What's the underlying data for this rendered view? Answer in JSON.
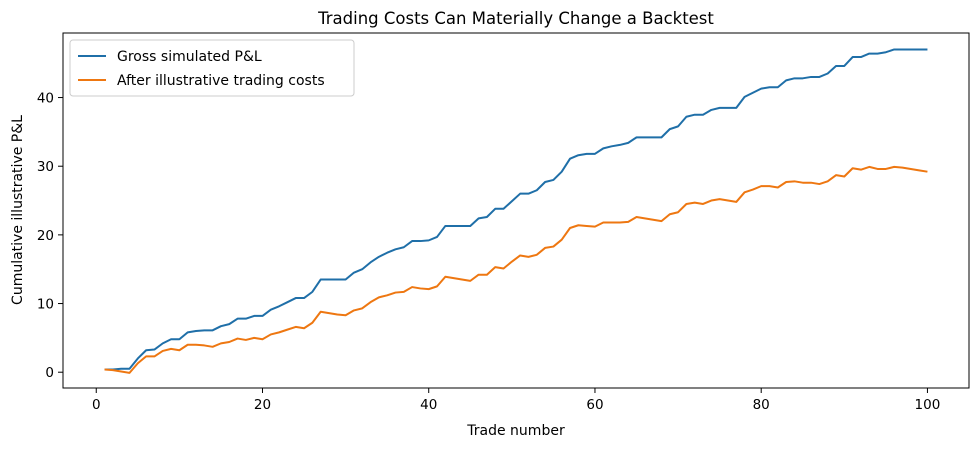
{
  "chart_data": {
    "type": "line",
    "title": "Trading Costs Can Materially Change a Backtest",
    "xlabel": "Trade number",
    "ylabel": "Cumulative illustrative P&L",
    "xlim": [
      -4.0,
      105.0
    ],
    "ylim": [
      -2.3,
      49.4
    ],
    "xticks": [
      0,
      20,
      40,
      60,
      80,
      100
    ],
    "yticks": [
      0,
      10,
      20,
      30,
      40
    ],
    "grid": false,
    "legend_position": "top-left",
    "series": [
      {
        "name": "Gross simulated P&L",
        "color": "#1f6fa8",
        "points": [
          [
            1,
            0.4
          ],
          [
            2,
            0.4
          ],
          [
            3,
            0.5
          ],
          [
            4,
            0.5
          ],
          [
            5,
            2.0
          ],
          [
            6,
            3.2
          ],
          [
            7,
            3.3
          ],
          [
            8,
            4.2
          ],
          [
            9,
            4.8
          ],
          [
            10,
            4.8
          ],
          [
            11,
            5.8
          ],
          [
            12,
            6.0
          ],
          [
            13,
            6.1
          ],
          [
            14,
            6.1
          ],
          [
            15,
            6.7
          ],
          [
            16,
            7.0
          ],
          [
            17,
            7.8
          ],
          [
            18,
            7.8
          ],
          [
            19,
            8.2
          ],
          [
            20,
            8.2
          ],
          [
            21,
            9.1
          ],
          [
            22,
            9.6
          ],
          [
            23,
            10.2
          ],
          [
            24,
            10.8
          ],
          [
            25,
            10.8
          ],
          [
            26,
            11.7
          ],
          [
            27,
            13.5
          ],
          [
            28,
            13.5
          ],
          [
            29,
            13.5
          ],
          [
            30,
            13.5
          ],
          [
            31,
            14.5
          ],
          [
            32,
            15.0
          ],
          [
            33,
            16.0
          ],
          [
            34,
            16.8
          ],
          [
            35,
            17.4
          ],
          [
            36,
            17.9
          ],
          [
            37,
            18.2
          ],
          [
            38,
            19.1
          ],
          [
            39,
            19.1
          ],
          [
            40,
            19.2
          ],
          [
            41,
            19.7
          ],
          [
            42,
            21.3
          ],
          [
            43,
            21.3
          ],
          [
            44,
            21.3
          ],
          [
            45,
            21.3
          ],
          [
            46,
            22.4
          ],
          [
            47,
            22.6
          ],
          [
            48,
            23.8
          ],
          [
            49,
            23.8
          ],
          [
            50,
            24.9
          ],
          [
            51,
            26.0
          ],
          [
            52,
            26.0
          ],
          [
            53,
            26.5
          ],
          [
            54,
            27.7
          ],
          [
            55,
            28.0
          ],
          [
            56,
            29.2
          ],
          [
            57,
            31.1
          ],
          [
            58,
            31.6
          ],
          [
            59,
            31.8
          ],
          [
            60,
            31.8
          ],
          [
            61,
            32.6
          ],
          [
            62,
            32.9
          ],
          [
            63,
            33.1
          ],
          [
            64,
            33.4
          ],
          [
            65,
            34.2
          ],
          [
            66,
            34.2
          ],
          [
            67,
            34.2
          ],
          [
            68,
            34.2
          ],
          [
            69,
            35.4
          ],
          [
            70,
            35.8
          ],
          [
            71,
            37.2
          ],
          [
            72,
            37.5
          ],
          [
            73,
            37.5
          ],
          [
            74,
            38.2
          ],
          [
            75,
            38.5
          ],
          [
            76,
            38.5
          ],
          [
            77,
            38.5
          ],
          [
            78,
            40.1
          ],
          [
            79,
            40.7
          ],
          [
            80,
            41.3
          ],
          [
            81,
            41.5
          ],
          [
            82,
            41.5
          ],
          [
            83,
            42.5
          ],
          [
            84,
            42.8
          ],
          [
            85,
            42.8
          ],
          [
            86,
            43.0
          ],
          [
            87,
            43.0
          ],
          [
            88,
            43.5
          ],
          [
            89,
            44.6
          ],
          [
            90,
            44.6
          ],
          [
            91,
            45.9
          ],
          [
            92,
            45.9
          ],
          [
            93,
            46.4
          ],
          [
            94,
            46.4
          ],
          [
            95,
            46.6
          ],
          [
            96,
            47.0
          ],
          [
            97,
            47.0
          ],
          [
            98,
            47.0
          ],
          [
            99,
            47.0
          ],
          [
            100,
            47.0
          ]
        ]
      },
      {
        "name": "After illustrative trading costs",
        "color": "#ee7711",
        "points": [
          [
            1,
            0.4
          ],
          [
            2,
            0.3
          ],
          [
            3,
            0.1
          ],
          [
            4,
            -0.1
          ],
          [
            5,
            1.3
          ],
          [
            6,
            2.3
          ],
          [
            7,
            2.3
          ],
          [
            8,
            3.1
          ],
          [
            9,
            3.4
          ],
          [
            10,
            3.2
          ],
          [
            11,
            4.0
          ],
          [
            12,
            4.0
          ],
          [
            13,
            3.9
          ],
          [
            14,
            3.7
          ],
          [
            15,
            4.2
          ],
          [
            16,
            4.4
          ],
          [
            17,
            4.9
          ],
          [
            18,
            4.7
          ],
          [
            19,
            5.0
          ],
          [
            20,
            4.8
          ],
          [
            21,
            5.5
          ],
          [
            22,
            5.8
          ],
          [
            23,
            6.2
          ],
          [
            24,
            6.6
          ],
          [
            25,
            6.4
          ],
          [
            26,
            7.2
          ],
          [
            27,
            8.8
          ],
          [
            28,
            8.6
          ],
          [
            29,
            8.4
          ],
          [
            30,
            8.3
          ],
          [
            31,
            9.0
          ],
          [
            32,
            9.3
          ],
          [
            33,
            10.2
          ],
          [
            34,
            10.9
          ],
          [
            35,
            11.2
          ],
          [
            36,
            11.6
          ],
          [
            37,
            11.7
          ],
          [
            38,
            12.4
          ],
          [
            39,
            12.2
          ],
          [
            40,
            12.1
          ],
          [
            41,
            12.5
          ],
          [
            42,
            13.9
          ],
          [
            43,
            13.7
          ],
          [
            44,
            13.5
          ],
          [
            45,
            13.3
          ],
          [
            46,
            14.2
          ],
          [
            47,
            14.2
          ],
          [
            48,
            15.3
          ],
          [
            49,
            15.1
          ],
          [
            50,
            16.1
          ],
          [
            51,
            17.0
          ],
          [
            52,
            16.8
          ],
          [
            53,
            17.1
          ],
          [
            54,
            18.1
          ],
          [
            55,
            18.3
          ],
          [
            56,
            19.3
          ],
          [
            57,
            21.0
          ],
          [
            58,
            21.4
          ],
          [
            59,
            21.3
          ],
          [
            60,
            21.2
          ],
          [
            61,
            21.8
          ],
          [
            62,
            21.8
          ],
          [
            63,
            21.8
          ],
          [
            64,
            21.9
          ],
          [
            65,
            22.6
          ],
          [
            66,
            22.4
          ],
          [
            67,
            22.2
          ],
          [
            68,
            22.0
          ],
          [
            69,
            23.0
          ],
          [
            70,
            23.3
          ],
          [
            71,
            24.5
          ],
          [
            72,
            24.7
          ],
          [
            73,
            24.5
          ],
          [
            74,
            25.0
          ],
          [
            75,
            25.2
          ],
          [
            76,
            25.0
          ],
          [
            77,
            24.8
          ],
          [
            78,
            26.2
          ],
          [
            79,
            26.6
          ],
          [
            80,
            27.1
          ],
          [
            81,
            27.1
          ],
          [
            82,
            26.9
          ],
          [
            83,
            27.7
          ],
          [
            84,
            27.8
          ],
          [
            85,
            27.6
          ],
          [
            86,
            27.6
          ],
          [
            87,
            27.4
          ],
          [
            88,
            27.8
          ],
          [
            89,
            28.7
          ],
          [
            90,
            28.5
          ],
          [
            91,
            29.7
          ],
          [
            92,
            29.5
          ],
          [
            93,
            29.9
          ],
          [
            94,
            29.6
          ],
          [
            95,
            29.6
          ],
          [
            96,
            29.9
          ],
          [
            97,
            29.8
          ],
          [
            98,
            29.6
          ],
          [
            99,
            29.4
          ],
          [
            100,
            29.2
          ]
        ]
      }
    ]
  }
}
